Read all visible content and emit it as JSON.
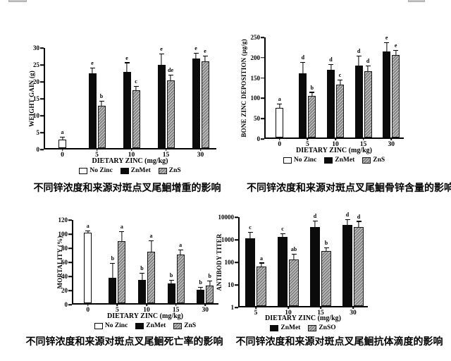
{
  "page": {
    "background": "#ffffff",
    "bar_colors": {
      "no_zinc": "#ffffff",
      "znmet": "#0b0b0b",
      "zns_hatch": "#b6b6b6"
    }
  },
  "chart_data": [
    {
      "id": "weight-gain",
      "type": "bar",
      "title": "不同锌浓度和来源对斑点叉尾鮰增重的影响",
      "xlabel": "DIETARY ZINC (mg/kg)",
      "ylabel": "WEIGHT GAIN (g)",
      "yscale": "linear",
      "ylim": [
        0,
        30
      ],
      "yticks": [
        0,
        5,
        10,
        15,
        20,
        25,
        30
      ],
      "categories": [
        "0",
        "5",
        "10",
        "15",
        "30"
      ],
      "legend_position": "bottom",
      "grid": false,
      "series": [
        {
          "name": "No Zinc",
          "style": "white",
          "values": [
            2.5,
            null,
            null,
            null,
            null
          ],
          "errors": [
            0.6,
            null,
            null,
            null,
            null
          ],
          "letters": [
            "a",
            "",
            "",
            "",
            ""
          ]
        },
        {
          "name": "ZnMet",
          "style": "black",
          "values": [
            null,
            22,
            22.5,
            24.5,
            26.5
          ],
          "errors": [
            null,
            1.5,
            2.6,
            3.2,
            1.4
          ],
          "letters": [
            "",
            "e",
            "e",
            "e",
            "e"
          ]
        },
        {
          "name": "ZnS",
          "style": "hatch",
          "values": [
            null,
            12.5,
            17,
            20,
            25.7
          ],
          "errors": [
            null,
            1.2,
            1.1,
            1.5,
            1.3
          ],
          "letters": [
            "",
            "b",
            "c",
            "de",
            "e"
          ]
        }
      ]
    },
    {
      "id": "bone-zinc",
      "type": "bar",
      "title": "不同锌浓度和来源对斑点叉尾鮰骨锌含量的影响",
      "xlabel": "DIETARY ZINC (mg/kg)",
      "ylabel": "BONE ZINC DEPOSITION (µg/g)",
      "yscale": "linear",
      "ylim": [
        0,
        250
      ],
      "yticks": [
        0,
        50,
        100,
        150,
        200,
        250
      ],
      "categories": [
        "0",
        "5",
        "10",
        "15",
        "30"
      ],
      "legend_position": "bottom",
      "grid": false,
      "series": [
        {
          "name": "No Zinc",
          "style": "white",
          "values": [
            73,
            null,
            null,
            null,
            null
          ],
          "errors": [
            8,
            null,
            null,
            null,
            null
          ],
          "letters": [
            "a",
            "",
            "",
            "",
            ""
          ]
        },
        {
          "name": "ZnMet",
          "style": "black",
          "values": [
            null,
            158,
            166,
            177,
            211
          ],
          "errors": [
            null,
            26,
            12,
            22,
            21
          ],
          "letters": [
            "",
            "d",
            "d",
            "d",
            "e"
          ]
        },
        {
          "name": "ZnS",
          "style": "hatch",
          "values": [
            null,
            102,
            130,
            163,
            204
          ],
          "errors": [
            null,
            8,
            10,
            12,
            9
          ],
          "letters": [
            "",
            "b",
            "c",
            "d",
            "e"
          ]
        }
      ]
    },
    {
      "id": "mortality",
      "type": "bar",
      "title": "不同锌浓度和来源对斑点叉尾鮰死亡率的影响",
      "xlabel": "DIETARY ZINC (mg/kg)",
      "ylabel": "MORTALITY (%)",
      "yscale": "linear",
      "ylim": [
        0,
        120
      ],
      "yticks": [
        0,
        20,
        40,
        60,
        80,
        100,
        120
      ],
      "categories": [
        "0",
        "5",
        "10",
        "15",
        "30"
      ],
      "legend_position": "bottom",
      "grid": false,
      "series": [
        {
          "name": "No Zinc",
          "style": "white",
          "values": [
            100,
            null,
            null,
            null,
            null
          ],
          "errors": [
            2,
            null,
            null,
            null,
            null
          ],
          "letters": [
            "a",
            "",
            "",
            "",
            ""
          ]
        },
        {
          "name": "ZnMet",
          "style": "black",
          "values": [
            null,
            36,
            33,
            28,
            19
          ],
          "errors": [
            null,
            20,
            9,
            4,
            3
          ],
          "letters": [
            "",
            "b",
            "b",
            "b",
            "b"
          ]
        },
        {
          "name": "ZnS",
          "style": "hatch",
          "values": [
            null,
            88,
            73,
            69,
            25
          ],
          "errors": [
            null,
            13,
            15,
            6,
            6
          ],
          "letters": [
            "",
            "a",
            "a",
            "a",
            "b"
          ]
        }
      ]
    },
    {
      "id": "antibody-titer",
      "type": "bar",
      "title": "不同锌浓度和来源对斑点叉尾鮰抗体滴度的影响",
      "xlabel": "DIETARY ZINC (mg/kg)",
      "ylabel": "ANTIBODY TITER",
      "yscale": "log",
      "ylim": [
        1,
        10000
      ],
      "yticks": [
        1,
        10,
        100,
        1000,
        10000
      ],
      "categories": [
        "5",
        "10",
        "15",
        "30"
      ],
      "legend_position": "bottom",
      "grid": false,
      "series": [
        {
          "name": "ZnMet",
          "style": "black",
          "values": [
            1000,
            1150,
            3100,
            4000
          ],
          "errors": [
            800,
            400,
            2600,
            2300
          ],
          "letters": [
            "c",
            "c",
            "d",
            "d"
          ]
        },
        {
          "name": "ZnSO",
          "style": "hatch",
          "values": [
            55,
            118,
            265,
            3200
          ],
          "errors": [
            22,
            70,
            95,
            2200
          ],
          "letters": [
            "a",
            "ab",
            "b",
            "d"
          ]
        }
      ]
    }
  ]
}
